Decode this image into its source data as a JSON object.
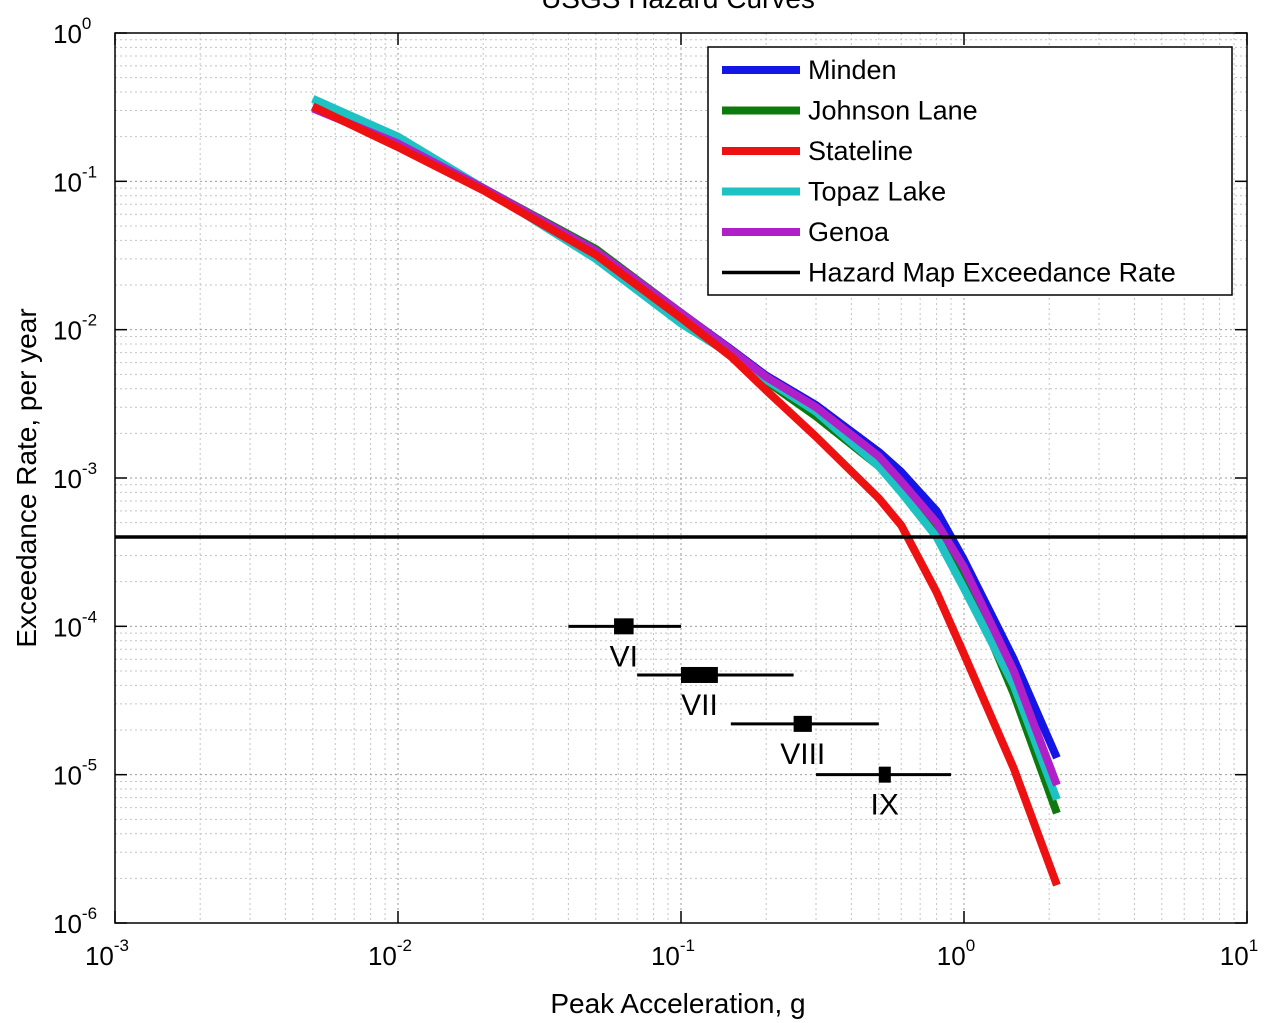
{
  "chart_data": {
    "type": "line",
    "title": "USGS Hazard Curves",
    "xlabel": "Peak Acceleration, g",
    "ylabel": "Exceedance Rate, per year",
    "x_scale": "log",
    "y_scale": "log",
    "xlim": [
      0.001,
      10
    ],
    "ylim": [
      1e-06,
      1
    ],
    "grid": true,
    "legend_position": "top-right",
    "x_tick_labels": [
      {
        "base": "10",
        "exp": "-3"
      },
      {
        "base": "10",
        "exp": "-2"
      },
      {
        "base": "10",
        "exp": "-1"
      },
      {
        "base": "10",
        "exp": "0"
      },
      {
        "base": "10",
        "exp": "1"
      }
    ],
    "y_tick_labels": [
      {
        "base": "10",
        "exp": "0"
      },
      {
        "base": "10",
        "exp": "-1"
      },
      {
        "base": "10",
        "exp": "-2"
      },
      {
        "base": "10",
        "exp": "-3"
      },
      {
        "base": "10",
        "exp": "-4"
      },
      {
        "base": "10",
        "exp": "-5"
      },
      {
        "base": "10",
        "exp": "-6"
      }
    ],
    "series": [
      {
        "name": "Minden",
        "color": "#1515e6",
        "x": [
          0.005,
          0.01,
          0.02,
          0.05,
          0.1,
          0.15,
          0.2,
          0.3,
          0.5,
          0.6,
          0.8,
          1.0,
          1.5,
          2.13
        ],
        "y": [
          0.32,
          0.18,
          0.09,
          0.034,
          0.013,
          0.0074,
          0.0049,
          0.0031,
          0.0015,
          0.0011,
          0.0006,
          0.00028,
          6e-05,
          1.3e-05
        ]
      },
      {
        "name": "Johnson Lane",
        "color": "#0e7a0e",
        "x": [
          0.005,
          0.01,
          0.02,
          0.05,
          0.1,
          0.15,
          0.2,
          0.3,
          0.5,
          0.6,
          0.8,
          1.0,
          1.5,
          2.13
        ],
        "y": [
          0.32,
          0.18,
          0.09,
          0.035,
          0.013,
          0.0072,
          0.0045,
          0.0026,
          0.0012,
          0.00085,
          0.00045,
          0.00022,
          3.5e-05,
          5.5e-06
        ]
      },
      {
        "name": "Stateline",
        "color": "#ee1111",
        "x": [
          0.005,
          0.01,
          0.02,
          0.05,
          0.1,
          0.15,
          0.2,
          0.3,
          0.5,
          0.6,
          0.8,
          1.0,
          1.5,
          2.13
        ],
        "y": [
          0.32,
          0.17,
          0.087,
          0.032,
          0.012,
          0.0066,
          0.0039,
          0.0019,
          0.00073,
          0.00048,
          0.00017,
          6.5e-05,
          1.1e-05,
          1.8e-06
        ]
      },
      {
        "name": "Topaz Lake",
        "color": "#1ec2c2",
        "x": [
          0.005,
          0.01,
          0.02,
          0.05,
          0.1,
          0.15,
          0.2,
          0.3,
          0.5,
          0.6,
          0.8,
          1.0,
          1.5,
          2.13
        ],
        "y": [
          0.36,
          0.2,
          0.09,
          0.03,
          0.011,
          0.0068,
          0.0046,
          0.0028,
          0.0012,
          0.0008,
          0.0004,
          0.00018,
          4e-05,
          6.8e-06
        ]
      },
      {
        "name": "Genoa",
        "color": "#b020c8",
        "x": [
          0.005,
          0.01,
          0.02,
          0.05,
          0.1,
          0.15,
          0.2,
          0.3,
          0.5,
          0.6,
          0.8,
          1.0,
          1.5,
          2.13
        ],
        "y": [
          0.31,
          0.18,
          0.09,
          0.034,
          0.013,
          0.0073,
          0.0048,
          0.003,
          0.0014,
          0.00095,
          0.0005,
          0.00025,
          5e-05,
          8.5e-06
        ]
      },
      {
        "name": "Hazard Map Exceedance Rate",
        "color": "#000000",
        "x": [
          0.001,
          10
        ],
        "y": [
          0.0004,
          0.0004
        ]
      }
    ],
    "intensity_intervals": [
      {
        "label": "VI",
        "y": 0.0001,
        "x_min": 0.04,
        "x_max": 0.1,
        "box_min": 0.058,
        "box_max": 0.068
      },
      {
        "label": "VII",
        "y": 4.7e-05,
        "x_min": 0.07,
        "x_max": 0.25,
        "box_min": 0.1,
        "box_max": 0.135
      },
      {
        "label": "VIII",
        "y": 2.2e-05,
        "x_min": 0.15,
        "x_max": 0.5,
        "box_min": 0.25,
        "box_max": 0.29
      },
      {
        "label": "IX",
        "y": 1e-05,
        "x_min": 0.3,
        "x_max": 0.9,
        "box_min": 0.5,
        "box_max": 0.55
      }
    ]
  }
}
